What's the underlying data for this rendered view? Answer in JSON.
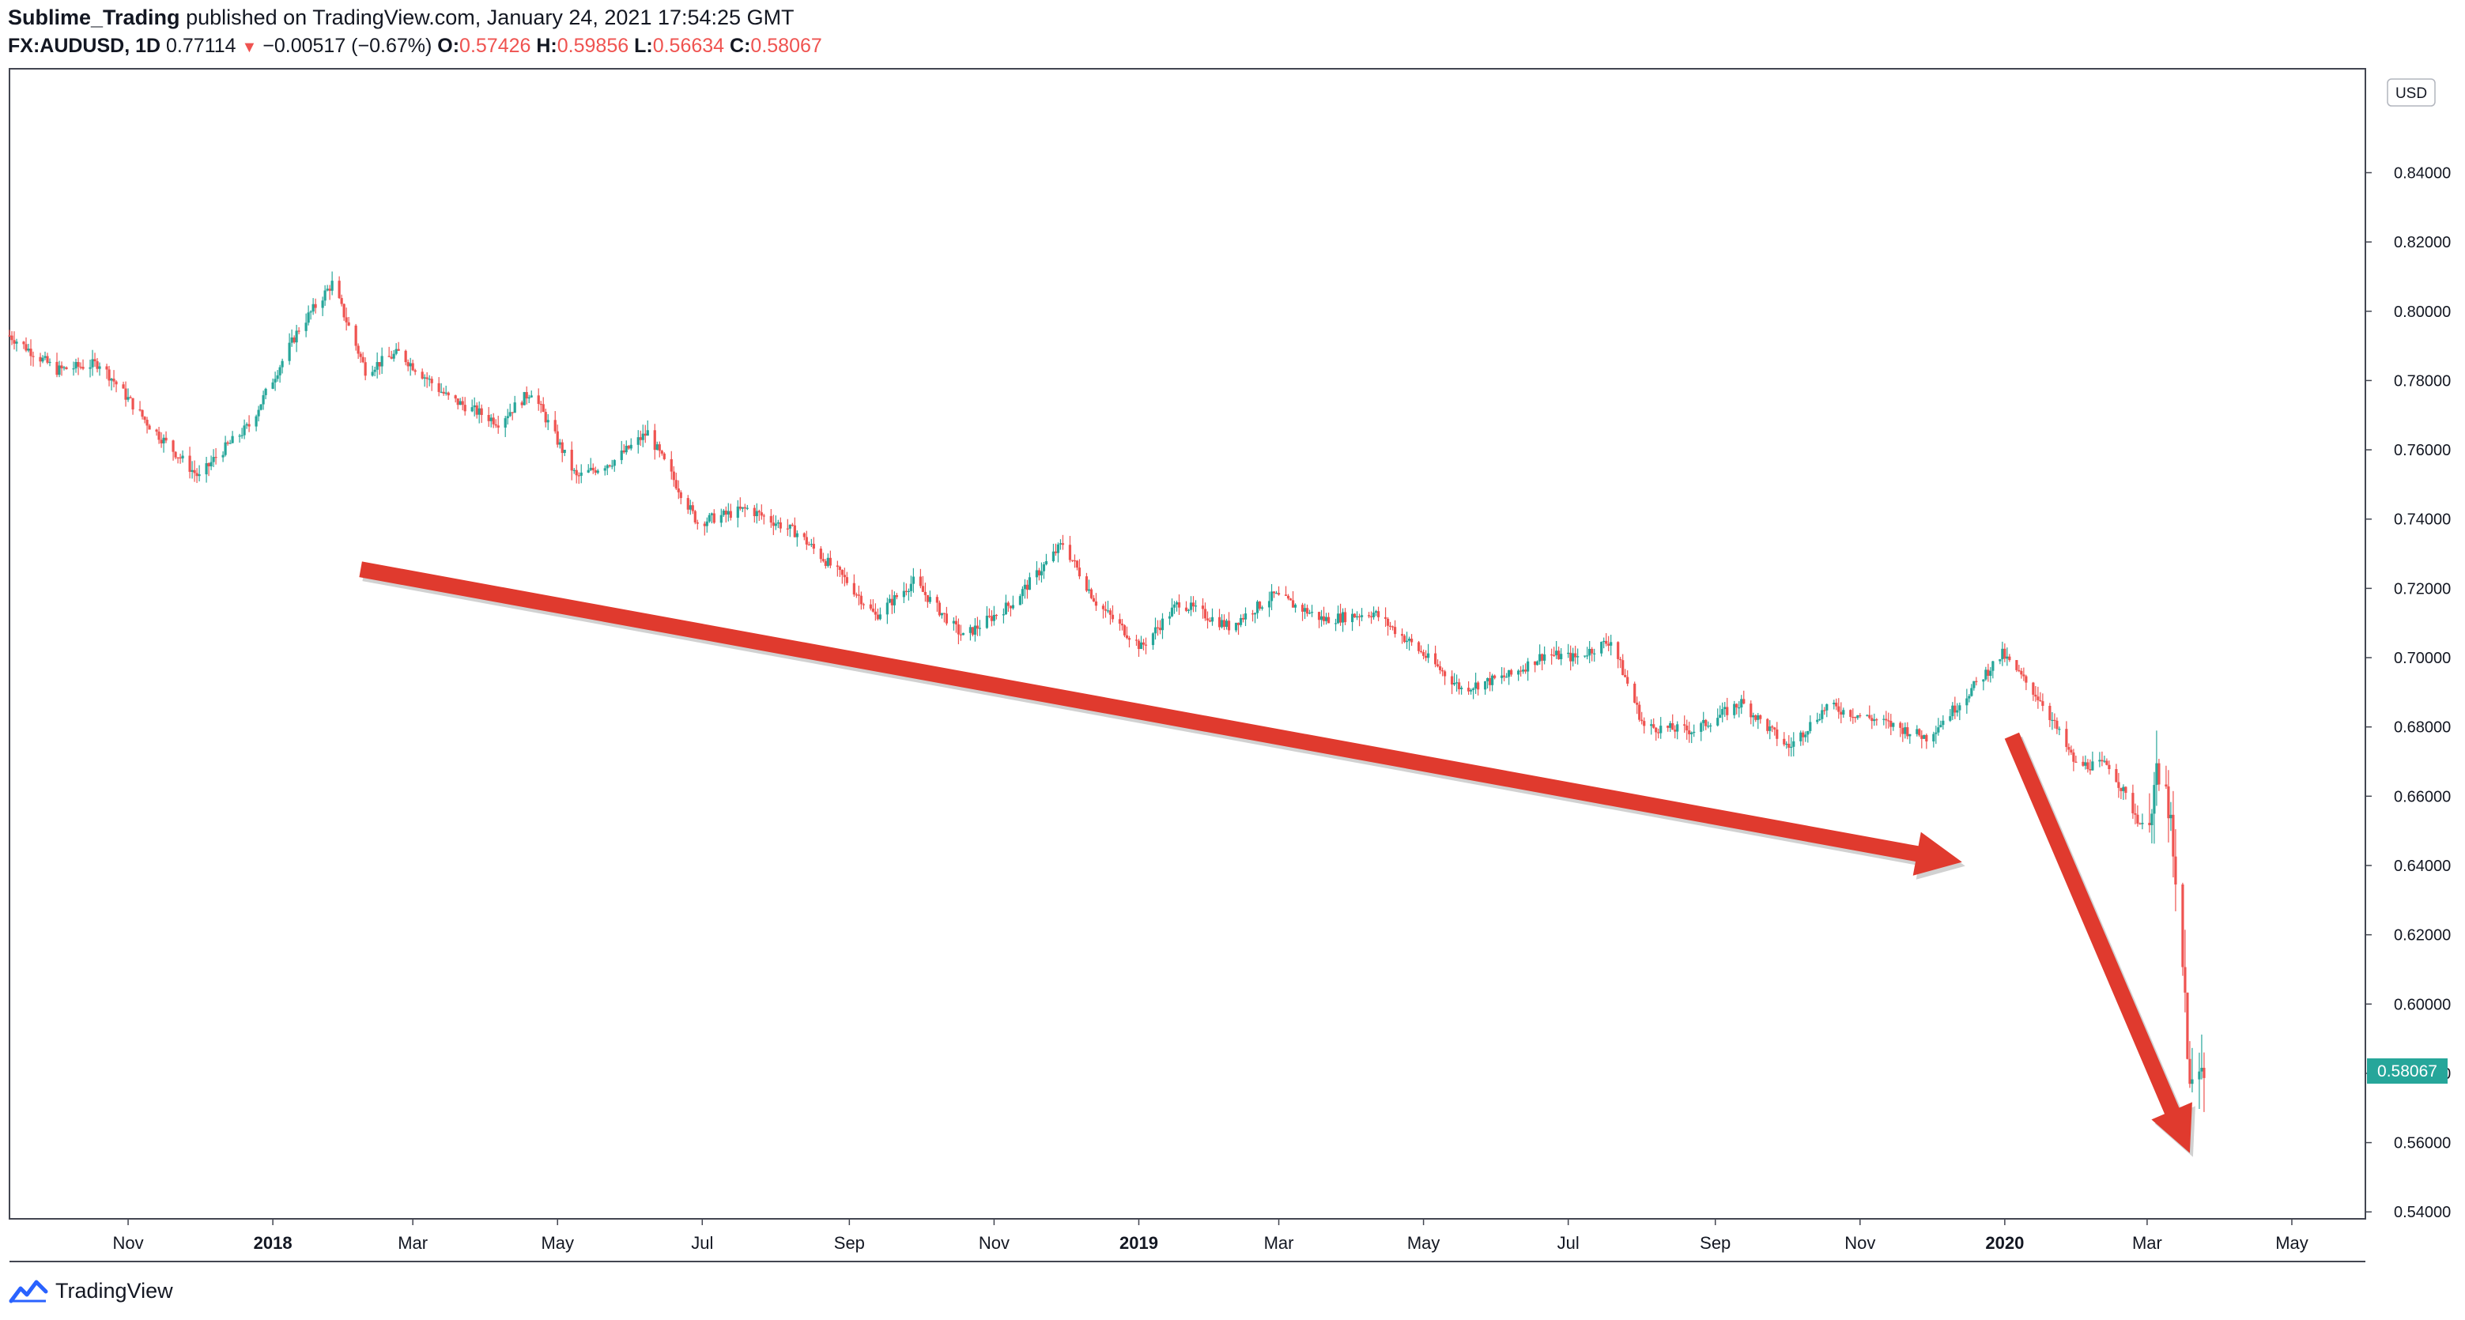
{
  "header": {
    "author": "Sublime_Trading",
    "published_text": "published on TradingView.com, January 24, 2021 17:54:25 GMT",
    "symbol": "FX:AUDUSD, 1D",
    "last": "0.77114",
    "change_arrow": "▼",
    "change": "−0.00517 (−0.67%)",
    "o_label": "O:",
    "o": "0.57426",
    "h_label": "H:",
    "h": "0.59856",
    "l_label": "L:",
    "l": "0.56634",
    "c_label": "C:",
    "c": "0.58067"
  },
  "currency_label": "USD",
  "price_badge": "0.58067",
  "footer": {
    "brand": "TradingView",
    "logo_icon": "tradingview-logo-icon"
  },
  "colors": {
    "up": "#26a69a",
    "down": "#ef5350",
    "arrow": "#e03a2e",
    "badge": "#26a69a"
  },
  "chart_data": {
    "type": "line",
    "style": "candlestick",
    "title": "FX:AUDUSD, 1D",
    "ylabel": "USD",
    "ylim": [
      0.538,
      0.87
    ],
    "y_ticks": [
      "0.84000",
      "0.82000",
      "0.80000",
      "0.78000",
      "0.76000",
      "0.74000",
      "0.72000",
      "0.70000",
      "0.68000",
      "0.66000",
      "0.64000",
      "0.62000",
      "0.60000",
      "0.58000",
      "0.56000",
      "0.54000"
    ],
    "x_ticks": [
      {
        "label": "Nov",
        "date": "2017-11-01"
      },
      {
        "label": "2018",
        "date": "2018-01-01",
        "bold": true
      },
      {
        "label": "Mar",
        "date": "2018-03-01"
      },
      {
        "label": "May",
        "date": "2018-05-01"
      },
      {
        "label": "Jul",
        "date": "2018-07-01"
      },
      {
        "label": "Sep",
        "date": "2018-09-01"
      },
      {
        "label": "Nov",
        "date": "2018-11-01"
      },
      {
        "label": "2019",
        "date": "2019-01-01",
        "bold": true
      },
      {
        "label": "Mar",
        "date": "2019-03-01"
      },
      {
        "label": "May",
        "date": "2019-05-01"
      },
      {
        "label": "Jul",
        "date": "2019-07-01"
      },
      {
        "label": "Sep",
        "date": "2019-09-01"
      },
      {
        "label": "Nov",
        "date": "2019-11-01"
      },
      {
        "label": "2020",
        "date": "2020-01-01",
        "bold": true
      },
      {
        "label": "Mar",
        "date": "2020-03-01"
      },
      {
        "label": "May",
        "date": "2020-05-01"
      }
    ],
    "xlim": [
      "2017-09-12",
      "2020-06-01"
    ],
    "series": [
      {
        "name": "AUDUSD",
        "x": [
          "2017-09-12",
          "2017-10-02",
          "2017-10-20",
          "2017-11-10",
          "2017-12-01",
          "2017-12-08",
          "2017-12-22",
          "2018-01-12",
          "2018-01-26",
          "2018-02-09",
          "2018-02-23",
          "2018-03-16",
          "2018-04-06",
          "2018-04-20",
          "2018-05-09",
          "2018-05-25",
          "2018-06-08",
          "2018-06-29",
          "2018-07-20",
          "2018-08-10",
          "2018-08-31",
          "2018-09-12",
          "2018-09-28",
          "2018-10-19",
          "2018-11-09",
          "2018-11-30",
          "2018-12-14",
          "2019-01-02",
          "2019-01-18",
          "2019-02-08",
          "2019-02-27",
          "2019-03-20",
          "2019-04-10",
          "2019-04-26",
          "2019-05-17",
          "2019-06-07",
          "2019-06-21",
          "2019-07-04",
          "2019-07-19",
          "2019-08-02",
          "2019-08-23",
          "2019-09-12",
          "2019-10-02",
          "2019-10-18",
          "2019-11-08",
          "2019-11-29",
          "2019-12-13",
          "2019-12-31",
          "2020-01-17",
          "2020-01-31",
          "2020-02-14",
          "2020-02-28",
          "2020-03-05",
          "2020-03-10",
          "2020-03-13",
          "2020-03-17",
          "2020-03-19",
          "2020-03-23",
          "2020-03-25"
        ],
        "values": [
          0.793,
          0.783,
          0.785,
          0.767,
          0.752,
          0.758,
          0.767,
          0.795,
          0.808,
          0.783,
          0.788,
          0.775,
          0.768,
          0.777,
          0.752,
          0.757,
          0.765,
          0.739,
          0.743,
          0.736,
          0.722,
          0.712,
          0.722,
          0.706,
          0.716,
          0.733,
          0.716,
          0.703,
          0.716,
          0.709,
          0.718,
          0.711,
          0.713,
          0.704,
          0.691,
          0.695,
          0.701,
          0.7,
          0.705,
          0.68,
          0.679,
          0.687,
          0.674,
          0.686,
          0.682,
          0.677,
          0.687,
          0.701,
          0.687,
          0.669,
          0.669,
          0.651,
          0.664,
          0.658,
          0.631,
          0.602,
          0.574,
          0.58,
          0.58067
        ]
      }
    ],
    "annotations": [
      {
        "type": "arrow",
        "from": [
          "2018-02-07",
          0.7255
        ],
        "to": [
          "2019-12-14",
          0.641
        ],
        "color": "#e03a2e"
      },
      {
        "type": "arrow",
        "from": [
          "2020-01-04",
          0.6775
        ],
        "to": [
          "2020-03-19",
          0.557
        ],
        "color": "#e03a2e"
      }
    ]
  }
}
